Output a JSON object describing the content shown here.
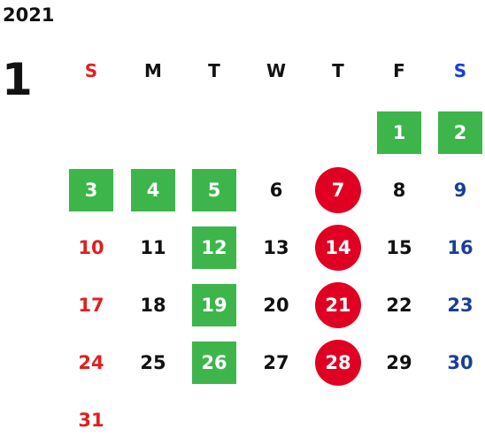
{
  "calendar": {
    "year": "2021",
    "month": "1",
    "weekdays": [
      "S",
      "M",
      "T",
      "W",
      "T",
      "F",
      "S"
    ],
    "weeks": [
      [
        "",
        "",
        "",
        "",
        "",
        "1",
        "2"
      ],
      [
        "3",
        "4",
        "5",
        "6",
        "7",
        "8",
        "9"
      ],
      [
        "10",
        "11",
        "12",
        "13",
        "14",
        "15",
        "16"
      ],
      [
        "17",
        "18",
        "19",
        "20",
        "21",
        "22",
        "23"
      ],
      [
        "24",
        "25",
        "26",
        "27",
        "28",
        "29",
        "30"
      ],
      [
        "31",
        "",
        "",
        "",
        "",
        "",
        ""
      ]
    ],
    "green_marked_days": [
      "1",
      "2",
      "3",
      "4",
      "5",
      "12",
      "19",
      "26"
    ],
    "red_circled_days": [
      "7",
      "14",
      "21",
      "28"
    ]
  },
  "colors": {
    "sunday": "#e02020",
    "saturday": "#1a3f99",
    "saturday_header": "#1740d9",
    "green_mark": "#3db54b",
    "red_circle": "#e00022",
    "text": "#111111"
  }
}
